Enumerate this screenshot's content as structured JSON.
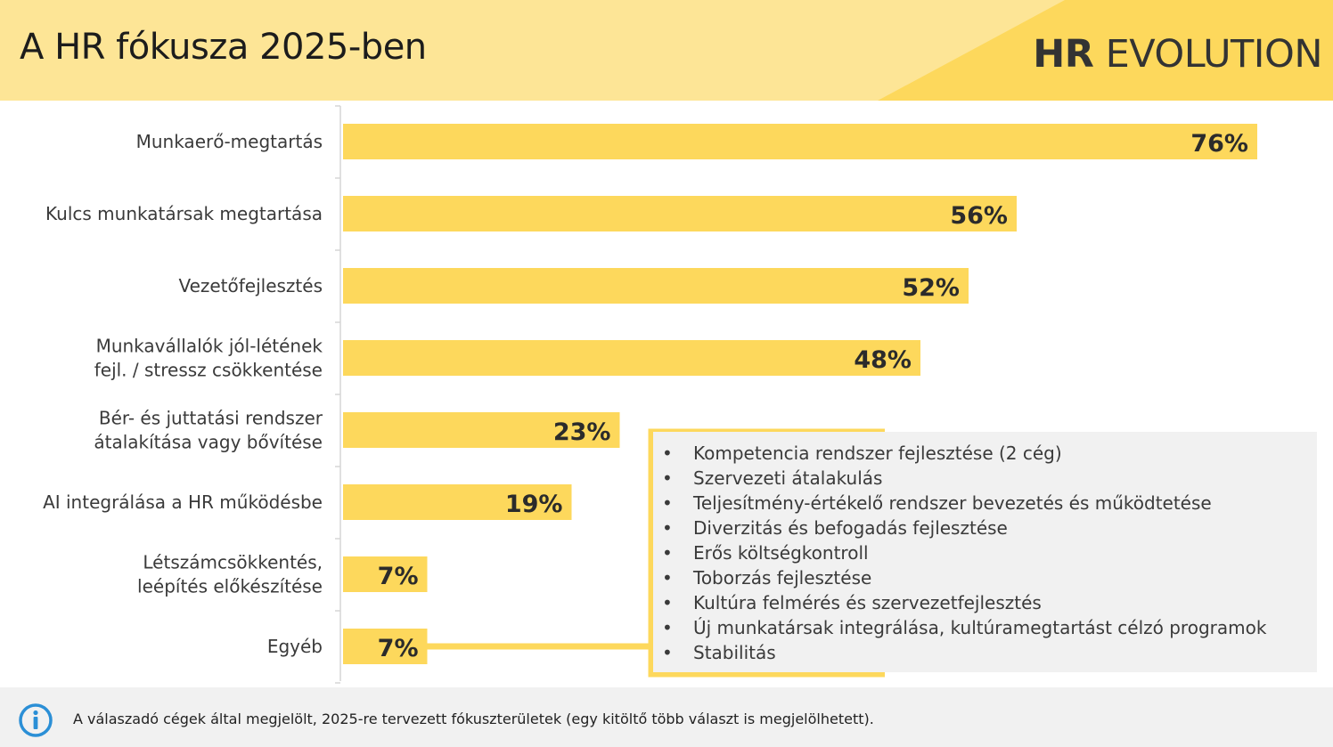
{
  "header": {
    "title": "A HR fókusza 2025-ben",
    "logo_bold": "HR",
    "logo_rest": " EVOLUTION"
  },
  "colors": {
    "header_light": "#fde596",
    "header_accent": "#fdd85c",
    "bar": "#fdd85c",
    "label_text": "#3a3a3a",
    "value_text": "#2b2b2b",
    "info_icon": "#2b8fd6"
  },
  "chart_data": {
    "type": "bar",
    "orientation": "horizontal",
    "categories": [
      "Munkaerő-megtartás",
      "Kulcs munkatársak megtartása",
      "Vezetőfejlesztés",
      "Munkavállalók jól-létének\nfejl. / stressz csökkentése",
      "Bér- és juttatási rendszer\nátalakítása vagy bővítése",
      "AI integrálása a HR működésbe",
      "Létszámcsökkentés,\nleépítés előkészítése",
      "Egyéb"
    ],
    "values": [
      76,
      56,
      52,
      48,
      23,
      19,
      7,
      7
    ],
    "value_labels": [
      "76%",
      "56%",
      "52%",
      "48%",
      "23%",
      "19%",
      "7%",
      "7%"
    ],
    "xlim": [
      0,
      80
    ],
    "grid": false,
    "legend": "none"
  },
  "note": {
    "items": [
      "Kompetencia rendszer fejlesztése (2 cég)",
      "Szervezeti átalakulás",
      "Teljesítmény-értékelő rendszer bevezetés és működtetése",
      "Diverzitás és befogadás fejlesztése",
      "Erős költségkontroll",
      "Toborzás fejlesztése",
      "Kultúra felmérés és szervezetfejlesztés",
      "Új munkatársak integrálása, kultúramegtartást célzó programok",
      "Stabilitás"
    ]
  },
  "footer": {
    "icon": "info-icon",
    "text": "A válaszadó cégek által megjelölt, 2025-re tervezett fókuszterületek (egy kitöltő több választ is megjelölhetett)."
  }
}
